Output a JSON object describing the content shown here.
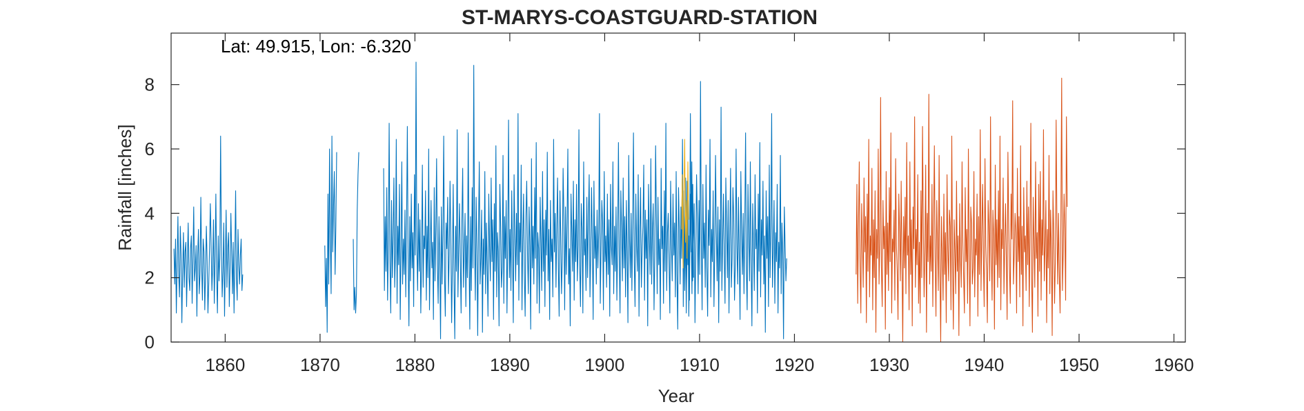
{
  "chart_data": {
    "type": "line",
    "title": "ST-MARYS-COASTGUARD-STATION",
    "xlabel": "Year",
    "ylabel": "Rainfall [inches]",
    "annotation": "Lat: 49.915, Lon: -6.320",
    "xlim": [
      1854.3,
      1961.2
    ],
    "ylim": [
      0,
      9.6
    ],
    "xticks": [
      1860,
      1870,
      1880,
      1890,
      1900,
      1910,
      1920,
      1930,
      1940,
      1950,
      1960
    ],
    "yticks": [
      0,
      2,
      4,
      6,
      8
    ],
    "grid": false,
    "legend": "none",
    "series": [
      {
        "color": "#0072BD",
        "segments": [
          {
            "start": 1854.6,
            "values": [
              2.9,
              1.8,
              3.2,
              0.9,
              2.4,
              3.9,
              2.1,
              1.4,
              3.6,
              2.7,
              0.6,
              2.2,
              3.4,
              1.7,
              2.8,
              3.1,
              1.1,
              2.5,
              3.7,
              2.0,
              1.6,
              2.9,
              3.3,
              1.2,
              2.6,
              4.2,
              1.9,
              2.3,
              3.0,
              0.8,
              2.7,
              3.5,
              1.5,
              2.1,
              4.5,
              2.4,
              1.3,
              3.2,
              2.8,
              1.0,
              2.2,
              3.6,
              2.5,
              0.9,
              1.8,
              2.9,
              4.3,
              3.1,
              1.6,
              2.4,
              3.8,
              1.2,
              2.7,
              4.6,
              2.1,
              0.9,
              3.3,
              1.9,
              2.6,
              6.4,
              3.0,
              1.4,
              2.2,
              3.7,
              0.8,
              2.5,
              4.1,
              1.7,
              2.9,
              3.4,
              1.1,
              2.3,
              4.0,
              2.8,
              1.5,
              3.1,
              0.9,
              2.6,
              4.7,
              2.0,
              1.3,
              3.5,
              2.4,
              1.8,
              2.7,
              3.2,
              1.6,
              2.1
            ]
          },
          {
            "start": 1870.5,
            "values": [
              3.0,
              1.1,
              2.6,
              0.3,
              4.6,
              1.8,
              6.0,
              3.2,
              1.5,
              6.4,
              2.8,
              4.2,
              5.3,
              2.1,
              3.6,
              5.9
            ]
          },
          {
            "start": 1873.5,
            "values": [
              3.2,
              1.0,
              1.7,
              0.9,
              1.5,
              4.1,
              5.2,
              5.9
            ]
          },
          {
            "start": 1876.7,
            "values": [
              5.4,
              1.6,
              3.9,
              2.2,
              4.8,
              1.3,
              3.1,
              6.8,
              2.5,
              0.9,
              4.4,
              2.0,
              3.3,
              5.1,
              1.7,
              2.8,
              6.3,
              1.2,
              3.6,
              2.4,
              4.9,
              0.7,
              2.9,
              5.6,
              1.8,
              3.2,
              2.1,
              4.1,
              1.4,
              3.7,
              6.7,
              2.6,
              0.5,
              3.9,
              1.9,
              4.6,
              2.3,
              3.4,
              1.1,
              5.2,
              2.7,
              8.7,
              3.0,
              1.6,
              4.3,
              2.2,
              3.8,
              0.9,
              2.5,
              5.5,
              1.7,
              3.3,
              2.9,
              4.7,
              1.3,
              3.6,
              2.0,
              6.0,
              1.0,
              2.8,
              4.4,
              2.3,
              3.1,
              0.7,
              4.8,
              1.9,
              3.5,
              5.7,
              2.4,
              1.2,
              3.9,
              2.6,
              0.1,
              4.2,
              1.8,
              3.4,
              6.4,
              2.1,
              0.8,
              3.7,
              2.9,
              4.5,
              1.5,
              2.7,
              5.0,
              3.2,
              0.6,
              2.4,
              4.9,
              1.9,
              0.1,
              3.6,
              2.2,
              6.6,
              1.4,
              3.0,
              4.3,
              2.5,
              0.9,
              3.8,
              5.4,
              1.7,
              2.8,
              4.0,
              1.1,
              3.3,
              2.0,
              6.5,
              2.7,
              0.4,
              3.9,
              1.6,
              4.8,
              2.3,
              8.6,
              3.1,
              1.3,
              4.5,
              2.9,
              0.2,
              3.5,
              5.6,
              1.8,
              2.6,
              4.1,
              0.3,
              3.2,
              2.1,
              5.3,
              1.5,
              3.7,
              2.4,
              0.8,
              4.6,
              3.0,
              1.9,
              5.1,
              2.5,
              3.8,
              0.7,
              4.3,
              2.2,
              6.1,
              1.4,
              3.4,
              2.8,
              0.5,
              4.9,
              3.6,
              1.7,
              2.3,
              5.8,
              1.2,
              3.9,
              2.6,
              4.4,
              0.9,
              3.1,
              6.9,
              2.0,
              3.5,
              1.6,
              4.7,
              2.9,
              0.6,
              5.2,
              3.3,
              1.9,
              4.0,
              2.4,
              7.1,
              1.3,
              3.7,
              2.8,
              5.5,
              1.0,
              3.2,
              4.6,
              2.1,
              0.8,
              3.9,
              5.0,
              2.7,
              1.5,
              4.2,
              3.0,
              0.4,
              5.7,
              2.3,
              3.6,
              1.8,
              4.8,
              2.6,
              6.2,
              1.2,
              3.4,
              2.9,
              0.9,
              4.5,
              3.1,
              1.6,
              5.3,
              2.2,
              3.8,
              1.1,
              4.1,
              2.7,
              5.9,
              1.9,
              3.5,
              0.7,
              4.4,
              2.5,
              3.2,
              1.4,
              6.3,
              2.8,
              4.0,
              1.7,
              3.6,
              5.1,
              2.3,
              0.8,
              4.7,
              3.3,
              1.5,
              2.6,
              5.4,
              3.9,
              1.0,
              4.2,
              2.1,
              3.7,
              6.0,
              1.8,
              2.9,
              0.5,
              4.6,
              3.4,
              2.2,
              5.0,
              1.3,
              3.8,
              2.5,
              4.9,
              1.9,
              3.0,
              6.6,
              2.4,
              1.1,
              4.3,
              3.5,
              0.9,
              5.6,
              2.7,
              3.2,
              1.6,
              4.5,
              2.0,
              3.9,
              5.2,
              1.4,
              2.8,
              4.8,
              3.1,
              0.7,
              5.0,
              2.6,
              3.6,
              1.8,
              4.1,
              2.3,
              3.4,
              7.1,
              1.2,
              2.9,
              4.4,
              3.7,
              1.0,
              5.3,
              2.5,
              3.3,
              1.7,
              4.6,
              2.1,
              3.8,
              0.8,
              4.9,
              3.0,
              2.4,
              5.6,
              1.5,
              3.6,
              2.2,
              4.2,
              1.3,
              3.1,
              6.2,
              2.7,
              0.9,
              4.7,
              3.5,
              1.9,
              5.1,
              2.3,
              3.9,
              1.4,
              4.4,
              2.8,
              0.6,
              5.8,
              3.2,
              2.0,
              4.0,
              1.6,
              3.7,
              6.5,
              2.5,
              1.1,
              4.6,
              3.0,
              2.2,
              5.2,
              0.8,
              3.4,
              4.8,
              1.7,
              2.9,
              3.6,
              5.5,
              1.3,
              4.1,
              2.6,
              3.8,
              0.5,
              4.9,
              3.3,
              2.1,
              5.7,
              1.8,
              3.5,
              4.3,
              1.0,
              2.7,
              6.1,
              3.9,
              1.5,
              4.5,
              2.4,
              3.2,
              0.7,
              5.4,
              2.9,
              3.6,
              1.2,
              4.7,
              2.2,
              6.8,
              1.6,
              3.4,
              4.0,
              2.5,
              0.9,
              5.0,
              3.1,
              1.9,
              4.6,
              2.7,
              3.7,
              1.4,
              5.3,
              2.1,
              0.4,
              4.8,
              3.5,
              1.8,
              4.2,
              2.6,
              6.3,
              1.1,
              3.9,
              2.3,
              5.1,
              1.7,
              3.0,
              4.4,
              0.8,
              2.8,
              7.1,
              3.3,
              1.5,
              4.9,
              2.0
            ]
          },
          {
            "start": 1908.1,
            "values": [
              3.6,
              5.1,
              2.2,
              4.7,
              1.6,
              3.9,
              0.9,
              5.0,
              2.4,
              3.3,
              1.3,
              4.6,
              2.8,
              5.6,
              1.9,
              3.1,
              4.3,
              0.6,
              2.7,
              5.2,
              3.8,
              1.5,
              4.4,
              2.1,
              8.1,
              3.2,
              1.0,
              4.9,
              2.6,
              3.7,
              1.7,
              5.5,
              2.3,
              0.8,
              4.1,
              3.0,
              6.3,
              1.4,
              3.5,
              2.5,
              4.7,
              1.1,
              2.9,
              5.8,
              3.4,
              1.9,
              4.2,
              0.6,
              3.8,
              2.2,
              7.3,
              1.6,
              3.1,
              4.6,
              2.8,
              1.2,
              5.1,
              3.6,
              2.0,
              4.4,
              0.9,
              3.3,
              5.4,
              1.7,
              2.6,
              4.8,
              3.9,
              1.3,
              2.4,
              6.0,
              3.0,
              1.8,
              4.5,
              2.7,
              0.7,
              5.3,
              3.4,
              2.1,
              4.0,
              1.5,
              3.7,
              6.5,
              2.3,
              1.0,
              4.9,
              3.2,
              1.9,
              5.6,
              2.5,
              0.5,
              4.3,
              3.0,
              1.6,
              5.2,
              2.9,
              3.5,
              0.9,
              4.6,
              2.2,
              6.2,
              1.4,
              3.8,
              2.7,
              5.0,
              1.8,
              3.3,
              0.3,
              4.7,
              2.6,
              3.9,
              1.1,
              5.5,
              2.0,
              3.6,
              7.1,
              1.7,
              2.9,
              4.4,
              1.2,
              3.4,
              2.5,
              4.9,
              0.9,
              3.1,
              2.3,
              5.8,
              1.5,
              3.7,
              2.8,
              0.1,
              4.2,
              3.0,
              1.9,
              2.6
            ]
          }
        ]
      },
      {
        "color": "#EDB120",
        "segments": [
          {
            "start": 1908.1,
            "values": [
              3.5,
              5.2,
              2.3,
              4.8,
              6.3,
              3.1,
              4.4,
              2.6,
              5.6,
              3.8
            ]
          }
        ]
      },
      {
        "color": "#D95319",
        "segments": [
          {
            "start": 1926.5,
            "values": [
              2.1,
              4.9,
              1.2,
              3.6,
              5.6,
              2.4,
              0.9,
              4.3,
              3.1,
              1.7,
              5.1,
              2.8,
              3.9,
              0.6,
              4.6,
              2.2,
              6.3,
              1.4,
              3.3,
              2.7,
              5.4,
              1.0,
              3.8,
              2.0,
              4.7,
              0.3,
              3.5,
              2.6,
              6.0,
              1.8,
              3.1,
              7.6,
              2.3,
              1.1,
              4.4,
              2.9,
              3.6,
              0.4,
              5.3,
              2.1,
              3.7,
              1.6,
              4.8,
              2.5,
              6.5,
              0.9,
              3.2,
              2.8,
              4.1,
              1.3,
              5.7,
              3.0,
              2.2,
              0.7,
              4.6,
              3.4,
              1.9,
              5.0,
              2.6,
              0.0,
              3.9,
              2.3,
              4.5,
              1.5,
              6.2,
              2.7,
              3.3,
              1.0,
              5.6,
              2.1,
              3.8,
              0.5,
              4.2,
              2.9,
              7.0,
              1.7,
              3.5,
              2.4,
              5.2,
              1.2,
              3.1,
              0.9,
              4.7,
              2.0,
              6.7,
              3.6,
              1.4,
              2.8,
              5.5,
              0.3,
              4.0,
              2.5,
              7.7,
              1.8,
              3.3,
              2.2,
              4.9,
              1.1,
              3.7,
              6.1,
              2.6,
              0.8,
              4.4,
              3.0,
              1.6,
              5.8,
              2.3,
              0.0,
              3.9,
              2.7,
              1.3,
              4.6,
              2.1,
              3.4,
              0.6,
              5.2,
              2.9,
              1.9,
              4.1,
              3.6,
              1.0,
              6.4,
              2.4,
              0.4,
              3.8,
              2.8,
              1.5,
              5.0,
              2.2,
              3.3,
              0.2,
              4.3,
              2.6,
              1.7,
              5.6,
              3.1,
              2.0,
              0.9,
              4.8,
              2.5,
              3.5,
              1.2,
              6.0,
              2.9,
              0.5,
              4.2,
              3.7,
              1.8,
              2.3,
              5.3,
              1.4,
              3.2,
              2.7,
              4.6,
              0.8,
              3.9,
              2.1,
              6.6,
              1.6,
              3.4,
              4.9,
              2.5,
              1.1,
              5.7,
              3.0,
              2.2,
              0.6,
              4.4,
              3.6,
              1.9,
              7.0,
              2.8,
              1.3,
              4.1,
              3.3,
              0.4,
              5.5,
              2.4,
              3.8,
              1.7,
              4.7,
              2.0,
              6.4,
              1.0,
              3.5,
              2.9,
              5.1,
              1.5,
              3.1,
              4.3,
              2.6,
              0.7,
              5.9,
              3.7,
              2.3,
              1.2,
              4.6,
              3.2,
              7.5,
              1.8,
              2.7,
              4.0,
              3.4,
              0.9,
              5.4,
              2.5,
              3.9,
              1.4,
              6.1,
              2.1,
              3.6,
              0.5,
              4.8,
              2.8,
              3.3,
              1.6,
              5.0,
              2.4,
              4.2,
              1.1,
              3.7,
              6.8,
              2.0,
              0.3,
              4.5,
              3.1,
              1.7,
              5.6,
              2.6,
              3.4,
              0.8,
              4.9,
              2.2,
              5.3,
              1.3,
              3.8,
              2.7,
              6.6,
              1.9,
              3.0,
              4.4,
              0.6,
              3.5,
              2.3,
              5.8,
              1.5,
              4.1,
              2.9,
              0.2,
              4.7,
              3.3,
              1.2,
              2.5,
              6.9,
              3.6,
              1.8,
              4.0,
              2.1,
              0.9,
              3.9,
              8.2,
              1.6,
              2.8,
              4.6,
              3.5,
              1.3,
              7.0,
              4.2
            ]
          }
        ]
      }
    ]
  }
}
